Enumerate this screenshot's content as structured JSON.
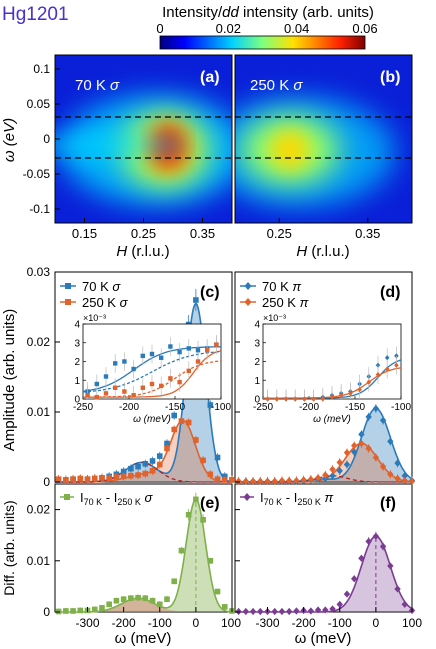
{
  "figure": {
    "sample_label": "Hg1201",
    "colorbar": {
      "title_pre": "Intensity/",
      "title_it": "dd",
      "title_post": " intensity (arb. units)",
      "ticks": [
        0,
        0.02,
        0.04,
        0.06
      ],
      "tick_labels": [
        "0",
        "0.02",
        "0.04",
        "0.06"
      ]
    },
    "maps": {
      "y_label": "ω (eV)",
      "x_label_it": "H",
      "x_label_rest": " (r.l.u.)",
      "y_ticks": [
        "0.1",
        "0.05",
        "0",
        "-0.05",
        "-0.1"
      ],
      "x_ticks": [
        "0.15",
        "0.25",
        "0.35"
      ],
      "panel_a": {
        "letter": "(a)",
        "temp": "70 K",
        "pol": "σ",
        "peak_H": 0.29,
        "peak_w": -0.015,
        "max": 0.06
      },
      "panel_b": {
        "letter": "(b)",
        "temp": "250 K",
        "pol": "σ",
        "peak_H": 0.3,
        "peak_w": -0.02,
        "max": 0.035
      },
      "dash_lines_w": [
        0.03,
        -0.03
      ]
    },
    "amp": {
      "y_label": "Amplitude (arb. units)",
      "y_ticks": [
        "0",
        "0.01",
        "0.02",
        "0.03"
      ],
      "letter_c": "(c)",
      "letter_d": "(d)",
      "legend_c": [
        "70 K σ",
        "250 K σ"
      ],
      "legend_d": [
        "70 K π",
        "250 K π"
      ],
      "inset_scale": "×10⁻³",
      "inset_y_ticks": [
        "0",
        "1",
        "2",
        "3",
        "4"
      ],
      "inset_x_ticks": [
        "-250",
        "-200",
        "-150",
        "-100"
      ],
      "inset_x_label": "ω (meV)"
    },
    "diff": {
      "y_label": "Diff. (arb. units)",
      "y_ticks": [
        "0",
        "0.01",
        "0.02"
      ],
      "letter_e": "(e)",
      "letter_f": "(f)",
      "legend_e": "I70 K - I250 K σ",
      "legend_f": "I70 K - I250 K π",
      "x_ticks": [
        "-300",
        "-200",
        "-100",
        "0",
        "100"
      ],
      "x_label": "ω (meV)"
    },
    "colors": {
      "blue": "#2b7bba",
      "orange": "#e0622d",
      "green": "#7fb04a",
      "purple": "#7a3d92",
      "red_dash": "#b02020"
    }
  },
  "chart_data": [
    {
      "type": "heatmap",
      "title": "(a) 70 K σ",
      "xlabel": "H (r.l.u.)",
      "ylabel": "ω (eV)",
      "xlim": [
        0.1,
        0.4
      ],
      "ylim": [
        -0.12,
        0.12
      ],
      "zlim": [
        0,
        0.06
      ]
    },
    {
      "type": "heatmap",
      "title": "(b) 250 K σ",
      "xlabel": "H (r.l.u.)",
      "ylabel": "ω (eV)",
      "xlim": [
        0.2,
        0.4
      ],
      "ylim": [
        -0.12,
        0.12
      ],
      "zlim": [
        0,
        0.06
      ]
    },
    {
      "type": "scatter",
      "title": "(c)",
      "ylabel": "Amplitude (arb. units)",
      "xlim": [
        -390,
        100
      ],
      "ylim": [
        0,
        0.03
      ],
      "series": [
        {
          "name": "70 K σ",
          "x": [
            -380,
            -360,
            -340,
            -320,
            -300,
            -280,
            -260,
            -240,
            -220,
            -200,
            -180,
            -160,
            -140,
            -120,
            -100,
            -80,
            -60,
            -40,
            -20,
            0,
            20,
            40,
            60,
            80,
            100
          ],
          "values": [
            0.0003,
            0.0003,
            0.0004,
            0.0004,
            0.0004,
            0.0005,
            0.0006,
            0.0008,
            0.0011,
            0.0015,
            0.0019,
            0.0022,
            0.0026,
            0.003,
            0.0037,
            0.0055,
            0.0095,
            0.016,
            0.0225,
            0.026,
            0.021,
            0.011,
            0.0035,
            0.0008,
            0.0003
          ]
        },
        {
          "name": "250 K σ",
          "x": [
            -380,
            -360,
            -340,
            -320,
            -300,
            -280,
            -260,
            -240,
            -220,
            -200,
            -180,
            -160,
            -140,
            -120,
            -100,
            -80,
            -60,
            -40,
            -20,
            0,
            20,
            40,
            60,
            80,
            100
          ],
          "values": [
            0.0004,
            0.0003,
            0.0004,
            0.0005,
            0.0004,
            0.0005,
            0.0006,
            0.0006,
            0.0007,
            0.0008,
            0.0009,
            0.001,
            0.0012,
            0.0016,
            0.0025,
            0.0048,
            0.0075,
            0.0087,
            0.0085,
            0.006,
            0.0031,
            0.0011,
            0.0004,
            0.0003,
            0.0003
          ]
        }
      ]
    },
    {
      "type": "scatter",
      "title": "(d)",
      "xlim": [
        -390,
        100
      ],
      "ylim": [
        0,
        0.03
      ],
      "series": [
        {
          "name": "70 K π",
          "x": [
            -380,
            -360,
            -340,
            -320,
            -300,
            -280,
            -260,
            -240,
            -220,
            -200,
            -180,
            -160,
            -140,
            -120,
            -100,
            -80,
            -60,
            -40,
            -20,
            0,
            20,
            40,
            60,
            80,
            100
          ],
          "values": [
            0.0001,
            0.0001,
            0.0001,
            0.0001,
            0.0001,
            0.0001,
            0.0001,
            0.0001,
            0.0001,
            0.0002,
            0.0003,
            0.0004,
            0.0005,
            0.0009,
            0.0016,
            0.0025,
            0.0043,
            0.0068,
            0.0093,
            0.0105,
            0.0088,
            0.0058,
            0.0027,
            0.0009,
            0.0002
          ]
        },
        {
          "name": "250 K π",
          "x": [
            -380,
            -360,
            -340,
            -320,
            -300,
            -280,
            -260,
            -240,
            -220,
            -200,
            -180,
            -160,
            -140,
            -120,
            -100,
            -80,
            -60,
            -40,
            -20,
            0,
            20,
            40,
            60,
            80,
            100
          ],
          "values": [
            0.0001,
            0.0001,
            0.0001,
            0.0001,
            0.0001,
            0.0001,
            0.0002,
            0.0002,
            0.0002,
            0.0003,
            0.0004,
            0.0006,
            0.001,
            0.0018,
            0.0028,
            0.0042,
            0.0052,
            0.0055,
            0.0048,
            0.0035,
            0.0022,
            0.0011,
            0.0005,
            0.0002,
            0.0001
          ]
        }
      ]
    },
    {
      "type": "scatter",
      "title": "(e)",
      "ylabel": "Diff. (arb. units)",
      "xlabel": "ω (meV)",
      "xlim": [
        -390,
        100
      ],
      "ylim": [
        0,
        0.025
      ],
      "series": [
        {
          "name": "I70 K - I250 K σ",
          "x": [
            -380,
            -360,
            -340,
            -320,
            -300,
            -280,
            -260,
            -240,
            -220,
            -200,
            -180,
            -160,
            -140,
            -120,
            -100,
            -80,
            -60,
            -40,
            -20,
            0,
            20,
            40,
            60,
            80,
            100
          ],
          "values": [
            0.0001,
            0.0002,
            0.0002,
            0.0003,
            0.0003,
            0.0005,
            0.0008,
            0.0015,
            0.0022,
            0.0025,
            0.0027,
            0.0028,
            0.0027,
            0.0022,
            0.0015,
            0.0025,
            0.006,
            0.012,
            0.019,
            0.022,
            0.018,
            0.01,
            0.004,
            0.001,
            0.0002
          ]
        }
      ]
    },
    {
      "type": "scatter",
      "title": "(f)",
      "xlabel": "ω (meV)",
      "xlim": [
        -390,
        100
      ],
      "ylim": [
        0,
        0.025
      ],
      "series": [
        {
          "name": "I70 K - I250 K π",
          "x": [
            -380,
            -360,
            -340,
            -320,
            -300,
            -280,
            -260,
            -240,
            -220,
            -200,
            -180,
            -160,
            -140,
            -120,
            -100,
            -80,
            -60,
            -40,
            -20,
            0,
            20,
            40,
            60,
            80,
            100
          ],
          "values": [
            0.0001,
            0.0001,
            0.0001,
            0.0001,
            0.0001,
            0.0001,
            0.0001,
            0.0001,
            0.0002,
            0.0003,
            0.0002,
            0.0004,
            0.0004,
            0.0006,
            0.0015,
            0.0035,
            0.0065,
            0.0105,
            0.0138,
            0.0148,
            0.0128,
            0.009,
            0.0045,
            0.0015,
            0.0003
          ]
        }
      ]
    }
  ]
}
